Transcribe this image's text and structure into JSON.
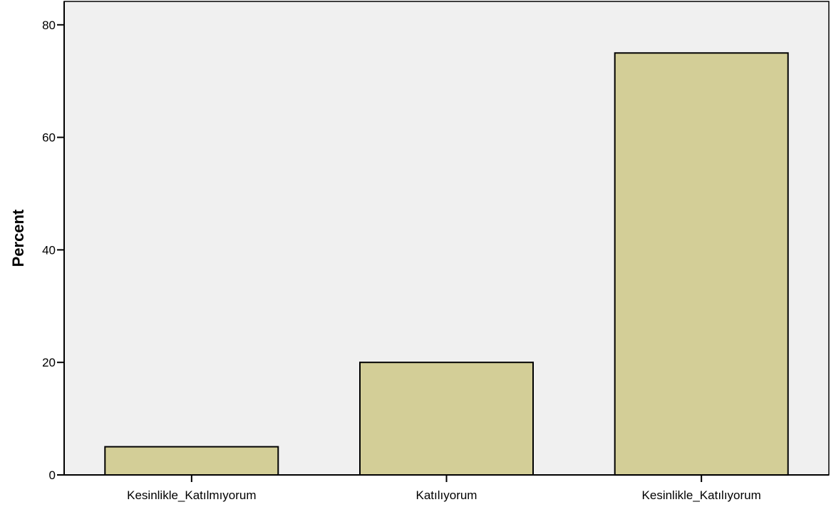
{
  "chart_data": {
    "type": "bar",
    "categories": [
      "Kesinlikle_Katılmıyorum",
      "Katılıyorum",
      "Kesinlikle_Katılıyorum"
    ],
    "values": [
      5,
      20,
      75
    ],
    "title": "",
    "xlabel": "",
    "ylabel": "Percent",
    "ylim": [
      0,
      84
    ],
    "yticks": [
      0,
      20,
      40,
      60,
      80
    ],
    "grid": false,
    "legend": "none"
  },
  "colors": {
    "plot_background": "#f0f0f0",
    "bar_fill": "#d3ce97",
    "bar_stroke": "#000000",
    "axis": "#000000"
  }
}
